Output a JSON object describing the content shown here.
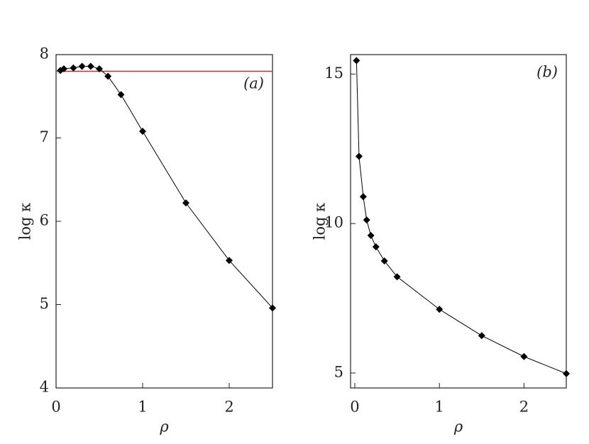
{
  "chart_data": [
    {
      "type": "line",
      "annotation": "(a)",
      "x_label": "ρ",
      "y_label": "log κ",
      "x": [
        0.05,
        0.09,
        0.2,
        0.3,
        0.4,
        0.5,
        0.6,
        0.75,
        1.0,
        1.5,
        2.0,
        2.5
      ],
      "series": [
        {
          "color": "#000000",
          "values": [
            7.81,
            7.83,
            7.84,
            7.86,
            7.86,
            7.83,
            7.74,
            7.52,
            7.08,
            6.22,
            5.53,
            4.96
          ]
        }
      ],
      "reference_line": {
        "value": 7.8,
        "color": "#d62728"
      },
      "xlim": [
        0,
        2.5
      ],
      "ylim": [
        4,
        8
      ],
      "xticks": [
        0,
        1,
        2
      ],
      "yticks": [
        4,
        5,
        6,
        7,
        8
      ]
    },
    {
      "type": "line",
      "annotation": "(b)",
      "x_label": "ρ",
      "y_label": "log κ",
      "x": [
        0.02,
        0.05,
        0.1,
        0.14,
        0.19,
        0.25,
        0.35,
        0.5,
        1.0,
        1.5,
        2.0,
        2.5
      ],
      "series": [
        {
          "color": "#000000",
          "values": [
            15.45,
            12.25,
            10.9,
            10.12,
            9.6,
            9.22,
            8.75,
            8.22,
            7.13,
            6.25,
            5.55,
            4.98
          ]
        }
      ],
      "xlim": [
        -0.05,
        2.5
      ],
      "ylim": [
        4.5,
        15.65
      ],
      "xticks": [
        0,
        1,
        2
      ],
      "yticks": [
        5,
        10,
        15
      ]
    }
  ]
}
